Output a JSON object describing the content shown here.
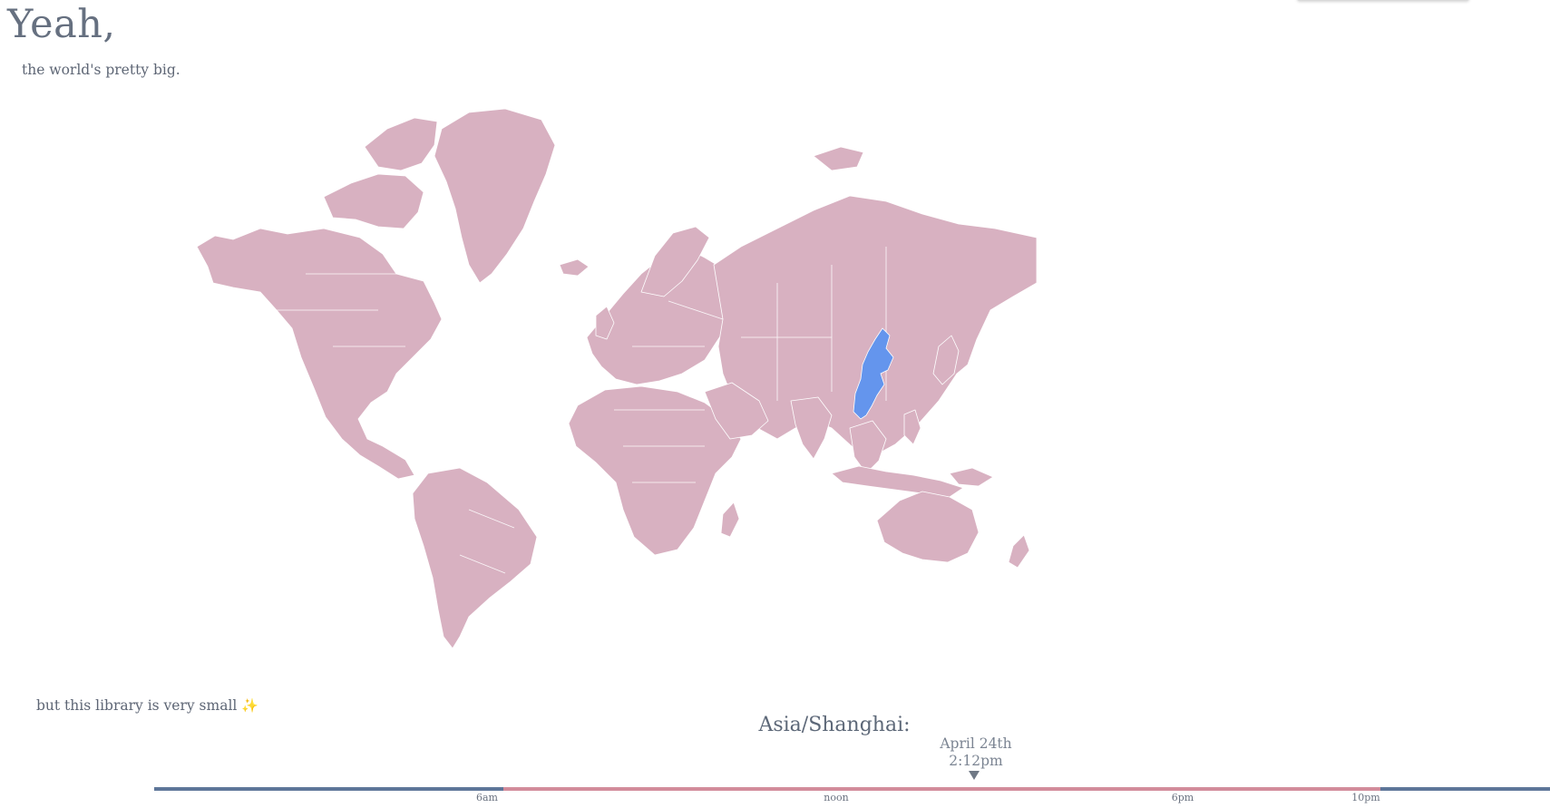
{
  "header": {
    "title": "Yeah,",
    "subtitle": "the world's pretty big."
  },
  "map": {
    "land_color": "#d8b1c1",
    "highlight_color": "#6495ed",
    "highlighted_region": "Asia/Shanghai"
  },
  "footer": {
    "text": "but this library is very small",
    "sparkle": "✨"
  },
  "timezone": {
    "name": "Asia/Shanghai:",
    "date": "April 24th",
    "time": "2:12pm",
    "ticks": [
      "6am",
      "noon",
      "6pm",
      "10pm"
    ],
    "day_color": "#d28c9b",
    "night_color": "#5e7699"
  }
}
